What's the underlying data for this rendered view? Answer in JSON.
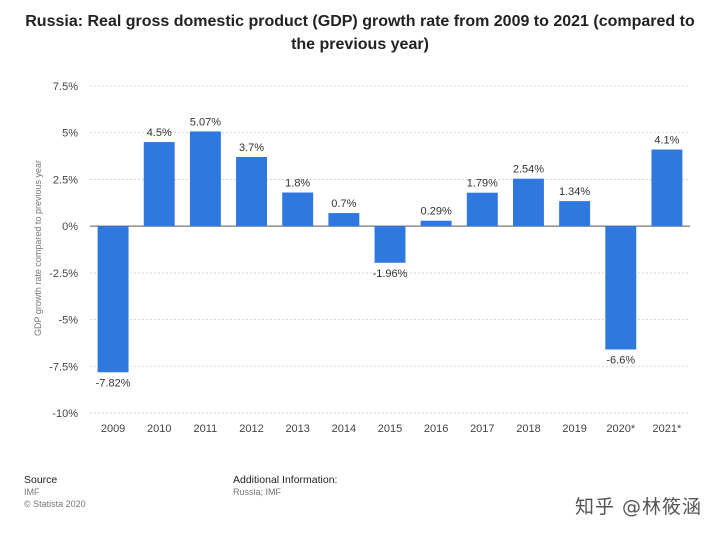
{
  "chart_data": {
    "type": "bar",
    "title": "Russia: Real gross domestic product (GDP) growth rate from 2009 to 2021 (compared to the previous year)",
    "ylabel": "GDP growth rate compared to previous year",
    "categories": [
      "2009",
      "2010",
      "2011",
      "2012",
      "2013",
      "2014",
      "2015",
      "2016",
      "2017",
      "2018",
      "2019",
      "2020*",
      "2021*"
    ],
    "values": [
      -7.82,
      4.5,
      5.07,
      3.7,
      1.8,
      0.7,
      -1.96,
      0.29,
      1.79,
      2.54,
      1.34,
      -6.6,
      4.1
    ],
    "value_labels": [
      "-7.82%",
      "4.5%",
      "5.07%",
      "3.7%",
      "1.8%",
      "0.7%",
      "-1.96%",
      "0.29%",
      "1.79%",
      "2.54%",
      "1.34%",
      "-6.6%",
      "4.1%"
    ],
    "yticks": [
      7.5,
      5,
      2.5,
      0,
      -2.5,
      -5,
      -7.5,
      -10
    ],
    "ytick_labels": [
      "7.5%",
      "5%",
      "2.5%",
      "0%",
      "-2.5%",
      "-5%",
      "-7.5%",
      "-10%"
    ],
    "ylim": [
      -10,
      7.5
    ],
    "grid": true,
    "bar_color": "#2f78e0"
  },
  "footer": {
    "source_heading": "Source",
    "source_lines": [
      "IMF",
      "© Statista 2020"
    ],
    "additional_heading": "Additional Information:",
    "additional_text": "Russia; IMF"
  },
  "watermark": "知乎 @林筱涵"
}
